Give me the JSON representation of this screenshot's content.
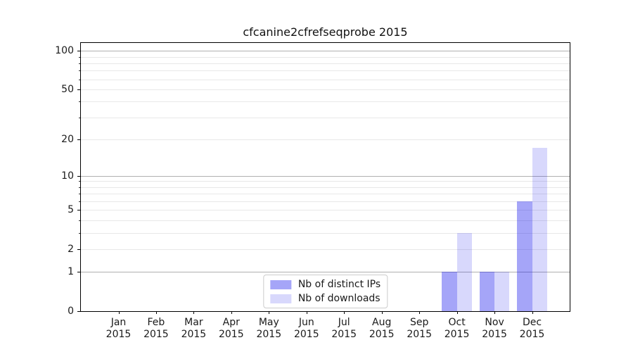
{
  "chart_data": {
    "type": "bar",
    "title": "cfcanine2cfrefseqprobe 2015",
    "xlabel": "",
    "ylabel": "",
    "categories": [
      "Jan 2015",
      "Feb 2015",
      "Mar 2015",
      "Apr 2015",
      "May 2015",
      "Jun 2015",
      "Jul 2015",
      "Aug 2015",
      "Sep 2015",
      "Oct 2015",
      "Nov 2015",
      "Dec 2015"
    ],
    "series": [
      {
        "name": "Nb of distinct IPs",
        "color": "rgba(10,10,235,0.37)",
        "values": [
          0,
          0,
          0,
          0,
          0,
          0,
          0,
          0,
          0,
          1,
          1,
          6
        ]
      },
      {
        "name": "Nb of downloads",
        "color": "rgba(10,10,235,0.16)",
        "values": [
          0,
          0,
          0,
          0,
          0,
          0,
          0,
          0,
          0,
          3,
          1,
          17
        ]
      }
    ],
    "y_scale": "log1p",
    "ylim": [
      0,
      115
    ],
    "y_tick_labels": [
      0,
      1,
      2,
      5,
      10,
      20,
      50,
      100
    ],
    "y_major_gridlines": [
      1,
      10,
      100
    ],
    "y_minor_gridlines": [
      2,
      3,
      4,
      5,
      6,
      7,
      8,
      9,
      20,
      30,
      40,
      50,
      60,
      70,
      80,
      90
    ],
    "grid": "horizontal",
    "legend_position": "lower center",
    "colors": {
      "spine": "#000000",
      "major_grid": "#b0b0b0",
      "minor_grid": "#e8e8e8",
      "legend_border": "#cccccc",
      "text": "#1a1a1a"
    }
  }
}
